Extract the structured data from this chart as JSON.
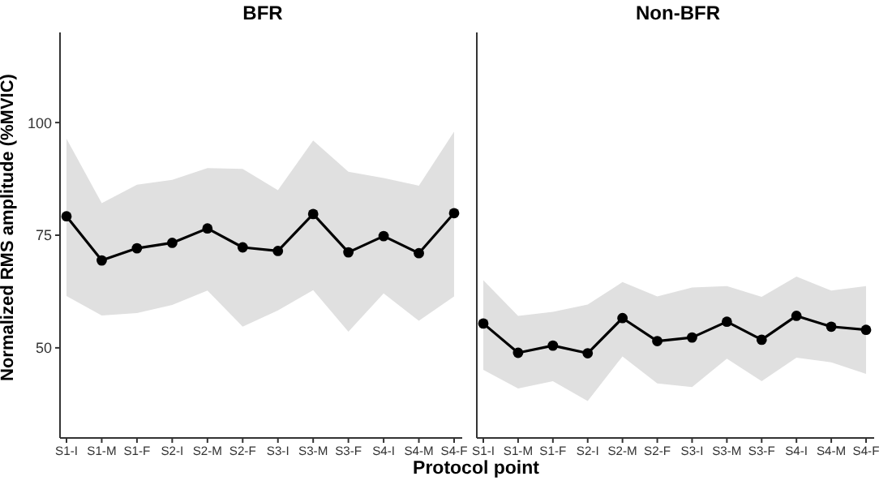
{
  "chart_data": [
    {
      "type": "line",
      "title": "BFR",
      "ylabel": "Normalized RMS amplitude (%MVIC)",
      "categories": [
        "S1-I",
        "S1-M",
        "S1-F",
        "S2-I",
        "S2-M",
        "S2-F",
        "S3-I",
        "S3-M",
        "S3-F",
        "S4-I",
        "S4-M",
        "S4-F"
      ],
      "ylim": [
        30,
        120
      ],
      "yticks": [
        50,
        75,
        100
      ],
      "marker": "circle",
      "legend": false,
      "grid": false,
      "series": [
        {
          "color": "#000000",
          "values": [
            79.2,
            69.4,
            72.1,
            73.3,
            76.5,
            72.3,
            71.5,
            79.7,
            71.2,
            74.8,
            71.0,
            79.9
          ],
          "upper": [
            96.4,
            82.1,
            86.2,
            87.3,
            89.9,
            89.7,
            85.0,
            96.0,
            89.1,
            87.7,
            86.0,
            98.0
          ],
          "lower": [
            61.5,
            57.2,
            57.7,
            59.5,
            62.7,
            54.7,
            58.3,
            62.8,
            53.6,
            62.1,
            56.0,
            61.4
          ]
        }
      ]
    },
    {
      "type": "line",
      "title": "Non-BFR",
      "xlabel": "Protocol point",
      "categories": [
        "S1-I",
        "S1-M",
        "S1-F",
        "S2-I",
        "S2-M",
        "S2-F",
        "S3-I",
        "S3-M",
        "S3-F",
        "S4-I",
        "S4-M",
        "S4-F"
      ],
      "ylim": [
        30,
        120
      ],
      "yticks": [
        50,
        75,
        100
      ],
      "tick_labels": "x",
      "marker": "circle",
      "legend": false,
      "grid": false,
      "series": [
        {
          "color": "#000000",
          "values": [
            55.4,
            48.9,
            50.5,
            48.8,
            56.6,
            51.5,
            52.3,
            55.8,
            51.8,
            57.1,
            54.7,
            54.0
          ],
          "upper": [
            65.0,
            57.1,
            58.0,
            59.6,
            64.6,
            61.4,
            63.4,
            63.7,
            61.3,
            65.8,
            62.7,
            63.7
          ],
          "lower": [
            45.1,
            41.0,
            42.6,
            38.2,
            48.1,
            42.1,
            41.3,
            47.6,
            42.6,
            47.8,
            46.8,
            44.2
          ]
        }
      ]
    }
  ]
}
